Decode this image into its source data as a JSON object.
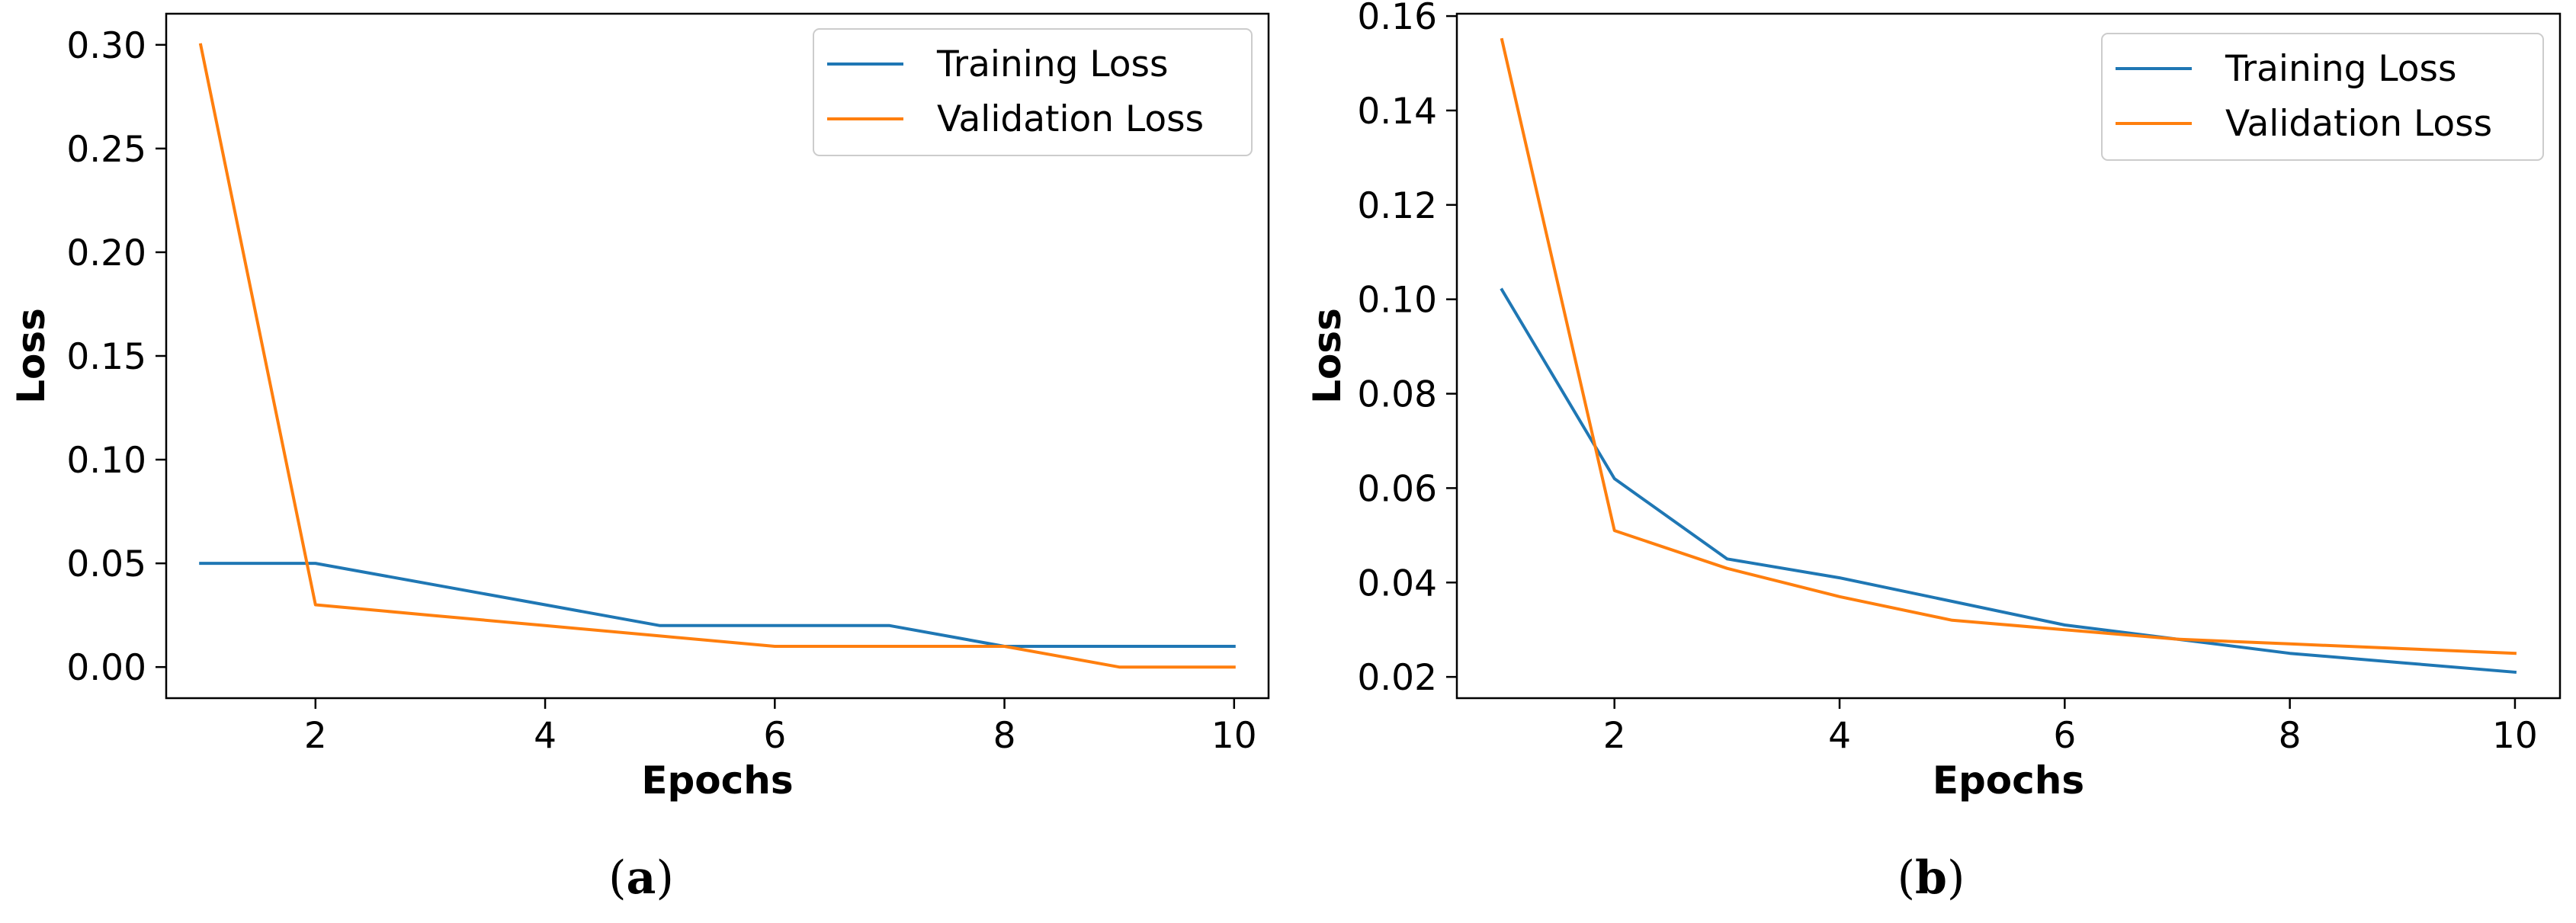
{
  "chart_data": [
    {
      "type": "line",
      "panel": "a",
      "caption": {
        "open": "(",
        "letter": "a",
        "close": ")"
      },
      "title": "",
      "xlabel": "Epochs",
      "ylabel": "Loss",
      "xlim": [
        0.7,
        10.3
      ],
      "ylim": [
        -0.015,
        0.315
      ],
      "xticks": [
        2,
        4,
        6,
        8,
        10
      ],
      "xtick_labels": [
        "2",
        "4",
        "6",
        "8",
        "10"
      ],
      "yticks": [
        0.0,
        0.05,
        0.1,
        0.15,
        0.2,
        0.25,
        0.3
      ],
      "ytick_labels": [
        "0.00",
        "0.05",
        "0.10",
        "0.15",
        "0.20",
        "0.25",
        "0.30"
      ],
      "grid": false,
      "legend_position": "top-right",
      "x": [
        1,
        2,
        3,
        4,
        5,
        6,
        7,
        8,
        9,
        10
      ],
      "series": [
        {
          "name": "Training Loss",
          "color": "#1f77b4",
          "values": [
            0.05,
            0.05,
            0.04,
            0.03,
            0.02,
            0.02,
            0.02,
            0.01,
            0.01,
            0.01
          ]
        },
        {
          "name": "Validation Loss",
          "color": "#ff7f0e",
          "values": [
            0.3,
            0.03,
            0.025,
            0.02,
            0.015,
            0.01,
            0.01,
            0.01,
            0.0,
            0.0
          ]
        }
      ]
    },
    {
      "type": "line",
      "panel": "b",
      "caption": {
        "open": "(",
        "letter": "b",
        "close": ")"
      },
      "title": "",
      "xlabel": "Epochs",
      "ylabel": "Loss",
      "xlim": [
        0.6,
        10.4
      ],
      "ylim": [
        0.0155,
        0.1605
      ],
      "xticks": [
        2,
        4,
        6,
        8,
        10
      ],
      "xtick_labels": [
        "2",
        "4",
        "6",
        "8",
        "10"
      ],
      "yticks": [
        0.02,
        0.04,
        0.06,
        0.08,
        0.1,
        0.12,
        0.14,
        0.16
      ],
      "ytick_labels": [
        "0.02",
        "0.04",
        "0.06",
        "0.08",
        "0.10",
        "0.12",
        "0.14",
        "0.16"
      ],
      "grid": false,
      "legend_position": "top-right",
      "x": [
        1,
        2,
        3,
        4,
        5,
        6,
        7,
        8,
        9,
        10
      ],
      "series": [
        {
          "name": "Training Loss",
          "color": "#1f77b4",
          "values": [
            0.102,
            0.062,
            0.045,
            0.041,
            0.036,
            0.031,
            0.028,
            0.025,
            0.023,
            0.021
          ]
        },
        {
          "name": "Validation Loss",
          "color": "#ff7f0e",
          "values": [
            0.155,
            0.051,
            0.043,
            0.037,
            0.032,
            0.03,
            0.028,
            0.027,
            0.026,
            0.025
          ]
        }
      ]
    }
  ]
}
